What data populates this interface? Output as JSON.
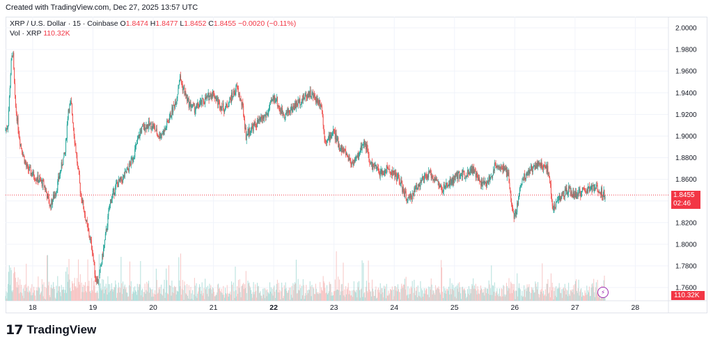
{
  "header": {
    "created_text": "Created with TradingView.com, Dec 27, 2025 13:57 UTC"
  },
  "legend": {
    "symbol": "XRP / U.S. Dollar · 15 · Coinbase",
    "open_label": "O",
    "open": "1.8474",
    "high_label": "H",
    "high": "1.8477",
    "low_label": "L",
    "low": "1.8452",
    "close_label": "C",
    "close": "1.8455",
    "change": "−0.0020 (−0.11%)",
    "volume_label": "Vol · XRP",
    "volume": "110.32K"
  },
  "price_tag": {
    "price": "1.8455",
    "countdown": "02:46"
  },
  "volume_tag": "110.32K",
  "logo": {
    "mark": "17",
    "text": "TradingView"
  },
  "colors": {
    "up": "#26a69a",
    "down": "#ef5350",
    "up_vol": "#b2dfdb",
    "down_vol": "#f7c6c5",
    "accent": "#f23645"
  },
  "icons": {
    "replay": "lightning-icon"
  },
  "chart_data": {
    "type": "candlestick",
    "y_axis": {
      "ticks": [
        "2.0000",
        "1.9800",
        "1.9600",
        "1.9400",
        "1.9200",
        "1.9000",
        "1.8800",
        "1.8600",
        "1.8400",
        "1.8200",
        "1.8000",
        "1.7800",
        "1.7600"
      ],
      "min": 1.755,
      "max": 2.003
    },
    "x_axis": {
      "ticks": [
        "18",
        "19",
        "20",
        "21",
        "22",
        "23",
        "24",
        "25",
        "26",
        "27",
        "28"
      ],
      "bold": "22",
      "range_days": [
        17.55,
        28.55
      ]
    },
    "last_price": 1.8455,
    "price_path": [
      [
        17.55,
        1.905
      ],
      [
        17.6,
        1.91
      ],
      [
        17.65,
        1.965
      ],
      [
        17.68,
        1.98
      ],
      [
        17.72,
        1.93
      ],
      [
        17.8,
        1.895
      ],
      [
        17.9,
        1.872
      ],
      [
        18.0,
        1.865
      ],
      [
        18.1,
        1.86
      ],
      [
        18.2,
        1.855
      ],
      [
        18.3,
        1.835
      ],
      [
        18.4,
        1.85
      ],
      [
        18.5,
        1.875
      ],
      [
        18.55,
        1.885
      ],
      [
        18.6,
        1.925
      ],
      [
        18.65,
        1.93
      ],
      [
        18.7,
        1.9
      ],
      [
        18.75,
        1.875
      ],
      [
        18.8,
        1.85
      ],
      [
        18.9,
        1.82
      ],
      [
        19.0,
        1.795
      ],
      [
        19.05,
        1.77
      ],
      [
        19.1,
        1.765
      ],
      [
        19.2,
        1.8
      ],
      [
        19.3,
        1.84
      ],
      [
        19.4,
        1.855
      ],
      [
        19.5,
        1.86
      ],
      [
        19.6,
        1.87
      ],
      [
        19.7,
        1.885
      ],
      [
        19.8,
        1.905
      ],
      [
        19.9,
        1.91
      ],
      [
        20.0,
        1.91
      ],
      [
        20.1,
        1.9
      ],
      [
        20.2,
        1.905
      ],
      [
        20.3,
        1.92
      ],
      [
        20.4,
        1.935
      ],
      [
        20.45,
        1.955
      ],
      [
        20.5,
        1.945
      ],
      [
        20.6,
        1.93
      ],
      [
        20.7,
        1.925
      ],
      [
        20.8,
        1.93
      ],
      [
        20.9,
        1.935
      ],
      [
        21.0,
        1.94
      ],
      [
        21.1,
        1.93
      ],
      [
        21.2,
        1.925
      ],
      [
        21.3,
        1.935
      ],
      [
        21.4,
        1.945
      ],
      [
        21.5,
        1.925
      ],
      [
        21.55,
        1.9
      ],
      [
        21.6,
        1.905
      ],
      [
        21.7,
        1.91
      ],
      [
        21.8,
        1.915
      ],
      [
        21.9,
        1.92
      ],
      [
        22.0,
        1.935
      ],
      [
        22.05,
        1.935
      ],
      [
        22.1,
        1.925
      ],
      [
        22.2,
        1.92
      ],
      [
        22.3,
        1.925
      ],
      [
        22.4,
        1.93
      ],
      [
        22.5,
        1.935
      ],
      [
        22.6,
        1.94
      ],
      [
        22.7,
        1.935
      ],
      [
        22.8,
        1.93
      ],
      [
        22.85,
        1.9
      ],
      [
        22.9,
        1.895
      ],
      [
        23.0,
        1.905
      ],
      [
        23.1,
        1.89
      ],
      [
        23.2,
        1.885
      ],
      [
        23.3,
        1.875
      ],
      [
        23.4,
        1.88
      ],
      [
        23.5,
        1.895
      ],
      [
        23.55,
        1.89
      ],
      [
        23.6,
        1.875
      ],
      [
        23.7,
        1.87
      ],
      [
        23.8,
        1.865
      ],
      [
        23.9,
        1.87
      ],
      [
        24.0,
        1.865
      ],
      [
        24.1,
        1.86
      ],
      [
        24.15,
        1.85
      ],
      [
        24.2,
        1.845
      ],
      [
        24.25,
        1.84
      ],
      [
        24.3,
        1.845
      ],
      [
        24.4,
        1.855
      ],
      [
        24.5,
        1.86
      ],
      [
        24.6,
        1.865
      ],
      [
        24.7,
        1.86
      ],
      [
        24.8,
        1.85
      ],
      [
        24.9,
        1.855
      ],
      [
        25.0,
        1.86
      ],
      [
        25.1,
        1.865
      ],
      [
        25.2,
        1.865
      ],
      [
        25.3,
        1.87
      ],
      [
        25.4,
        1.86
      ],
      [
        25.5,
        1.855
      ],
      [
        25.6,
        1.86
      ],
      [
        25.7,
        1.875
      ],
      [
        25.8,
        1.87
      ],
      [
        25.9,
        1.865
      ],
      [
        25.95,
        1.84
      ],
      [
        26.0,
        1.825
      ],
      [
        26.05,
        1.835
      ],
      [
        26.1,
        1.855
      ],
      [
        26.2,
        1.865
      ],
      [
        26.3,
        1.87
      ],
      [
        26.4,
        1.875
      ],
      [
        26.5,
        1.87
      ],
      [
        26.55,
        1.87
      ],
      [
        26.6,
        1.855
      ],
      [
        26.65,
        1.83
      ],
      [
        26.7,
        1.84
      ],
      [
        26.8,
        1.845
      ],
      [
        26.9,
        1.85
      ],
      [
        27.0,
        1.845
      ],
      [
        27.1,
        1.848
      ],
      [
        27.2,
        1.85
      ],
      [
        27.3,
        1.852
      ],
      [
        27.4,
        1.851
      ],
      [
        27.5,
        1.8455
      ]
    ]
  }
}
